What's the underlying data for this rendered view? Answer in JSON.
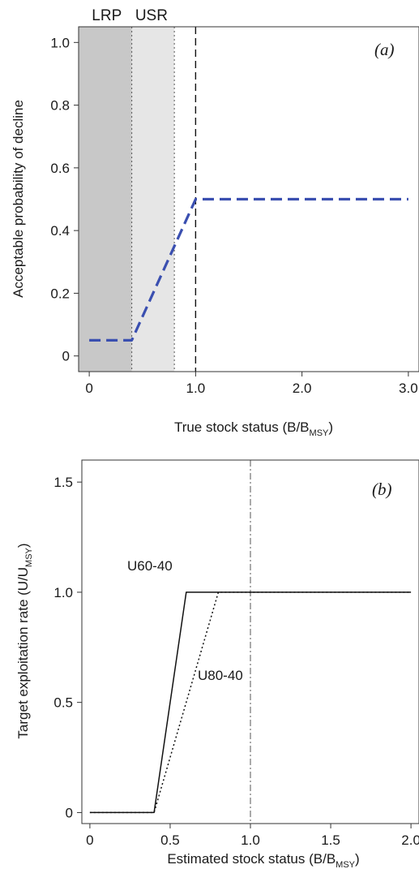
{
  "chart_data": [
    {
      "type": "line",
      "panel_label": "(a)",
      "xlabel": "True stock status (B/B",
      "xlabel_sub": "MSY",
      "xlabel_end": ")",
      "ylabel": "Acceptable probability of decline",
      "xlim": [
        -0.1,
        3.1
      ],
      "ylim": [
        -0.05,
        1.05
      ],
      "x_ticks": [
        0,
        1,
        2,
        3
      ],
      "x_tick_labels": [
        "0",
        "1.0",
        "2.0",
        "3.0"
      ],
      "y_ticks": [
        0,
        0.2,
        0.4,
        0.6,
        0.8,
        1.0
      ],
      "y_tick_labels": [
        "0",
        "0.2",
        "0.4",
        "0.6",
        "0.8",
        "1.0"
      ],
      "zones": [
        {
          "label": "LRP",
          "x_start": -0.1,
          "x_end": 0.4,
          "color": "#c8c8c8"
        },
        {
          "label": "USR",
          "x_start": 0.4,
          "x_end": 0.8,
          "color": "#e6e6e6"
        }
      ],
      "reference_lines": [
        {
          "x": 0.4,
          "style": "dotted"
        },
        {
          "x": 0.8,
          "style": "dotted"
        },
        {
          "x": 1.0,
          "style": "dashed"
        }
      ],
      "series": [
        {
          "color": "#3a4fb0",
          "style": "dashed",
          "x": [
            0,
            0.4,
            1.0,
            3.0
          ],
          "y": [
            0.05,
            0.05,
            0.5,
            0.5
          ]
        }
      ]
    },
    {
      "type": "line",
      "panel_label": "(b)",
      "xlabel": "Estimated stock status (B/B",
      "xlabel_sub": "MSY",
      "xlabel_end": ")",
      "ylabel": "Target exploitation rate (U/U",
      "ylabel_sub": "MSY",
      "ylabel_end": ")",
      "xlim": [
        -0.05,
        2.05
      ],
      "ylim": [
        -0.05,
        1.6
      ],
      "x_ticks": [
        0,
        0.5,
        1.0,
        1.5,
        2.0
      ],
      "x_tick_labels": [
        "0",
        "0.5",
        "1.0",
        "1.5",
        "2.0"
      ],
      "y_ticks": [
        0,
        0.5,
        1.0,
        1.5
      ],
      "y_tick_labels": [
        "0",
        "0.5",
        "1.0",
        "1.5"
      ],
      "reference_lines": [
        {
          "x": 1.0,
          "style": "dashdot"
        }
      ],
      "series": [
        {
          "name": "U60-40",
          "color": "#111111",
          "style": "solid",
          "x": [
            0,
            0.4,
            0.6,
            2.0
          ],
          "y": [
            0,
            0,
            1.0,
            1.0
          ]
        },
        {
          "name": "U80-40",
          "color": "#111111",
          "style": "dotted",
          "x": [
            0,
            0.4,
            0.8,
            2.0
          ],
          "y": [
            0,
            0,
            1.0,
            1.0
          ]
        }
      ]
    }
  ]
}
